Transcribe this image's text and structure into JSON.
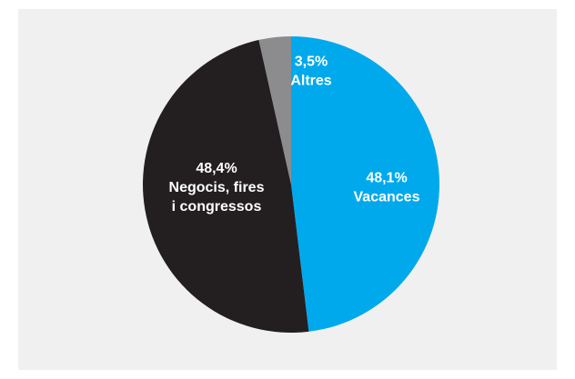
{
  "chart_data": {
    "type": "pie",
    "title": "",
    "start": "top",
    "direction": "clockwise",
    "slices": [
      {
        "value": 48.1,
        "value_label": "48,1%",
        "label": [
          "Vacances"
        ],
        "color": "#00a9ec"
      },
      {
        "value": 48.4,
        "value_label": "48,4%",
        "label": [
          "Negocis, fires",
          "i congressos"
        ],
        "color": "#231f20"
      },
      {
        "value": 3.5,
        "value_label": "3,5%",
        "label": [
          "Altres"
        ],
        "color": "#8c8c8e"
      }
    ]
  }
}
